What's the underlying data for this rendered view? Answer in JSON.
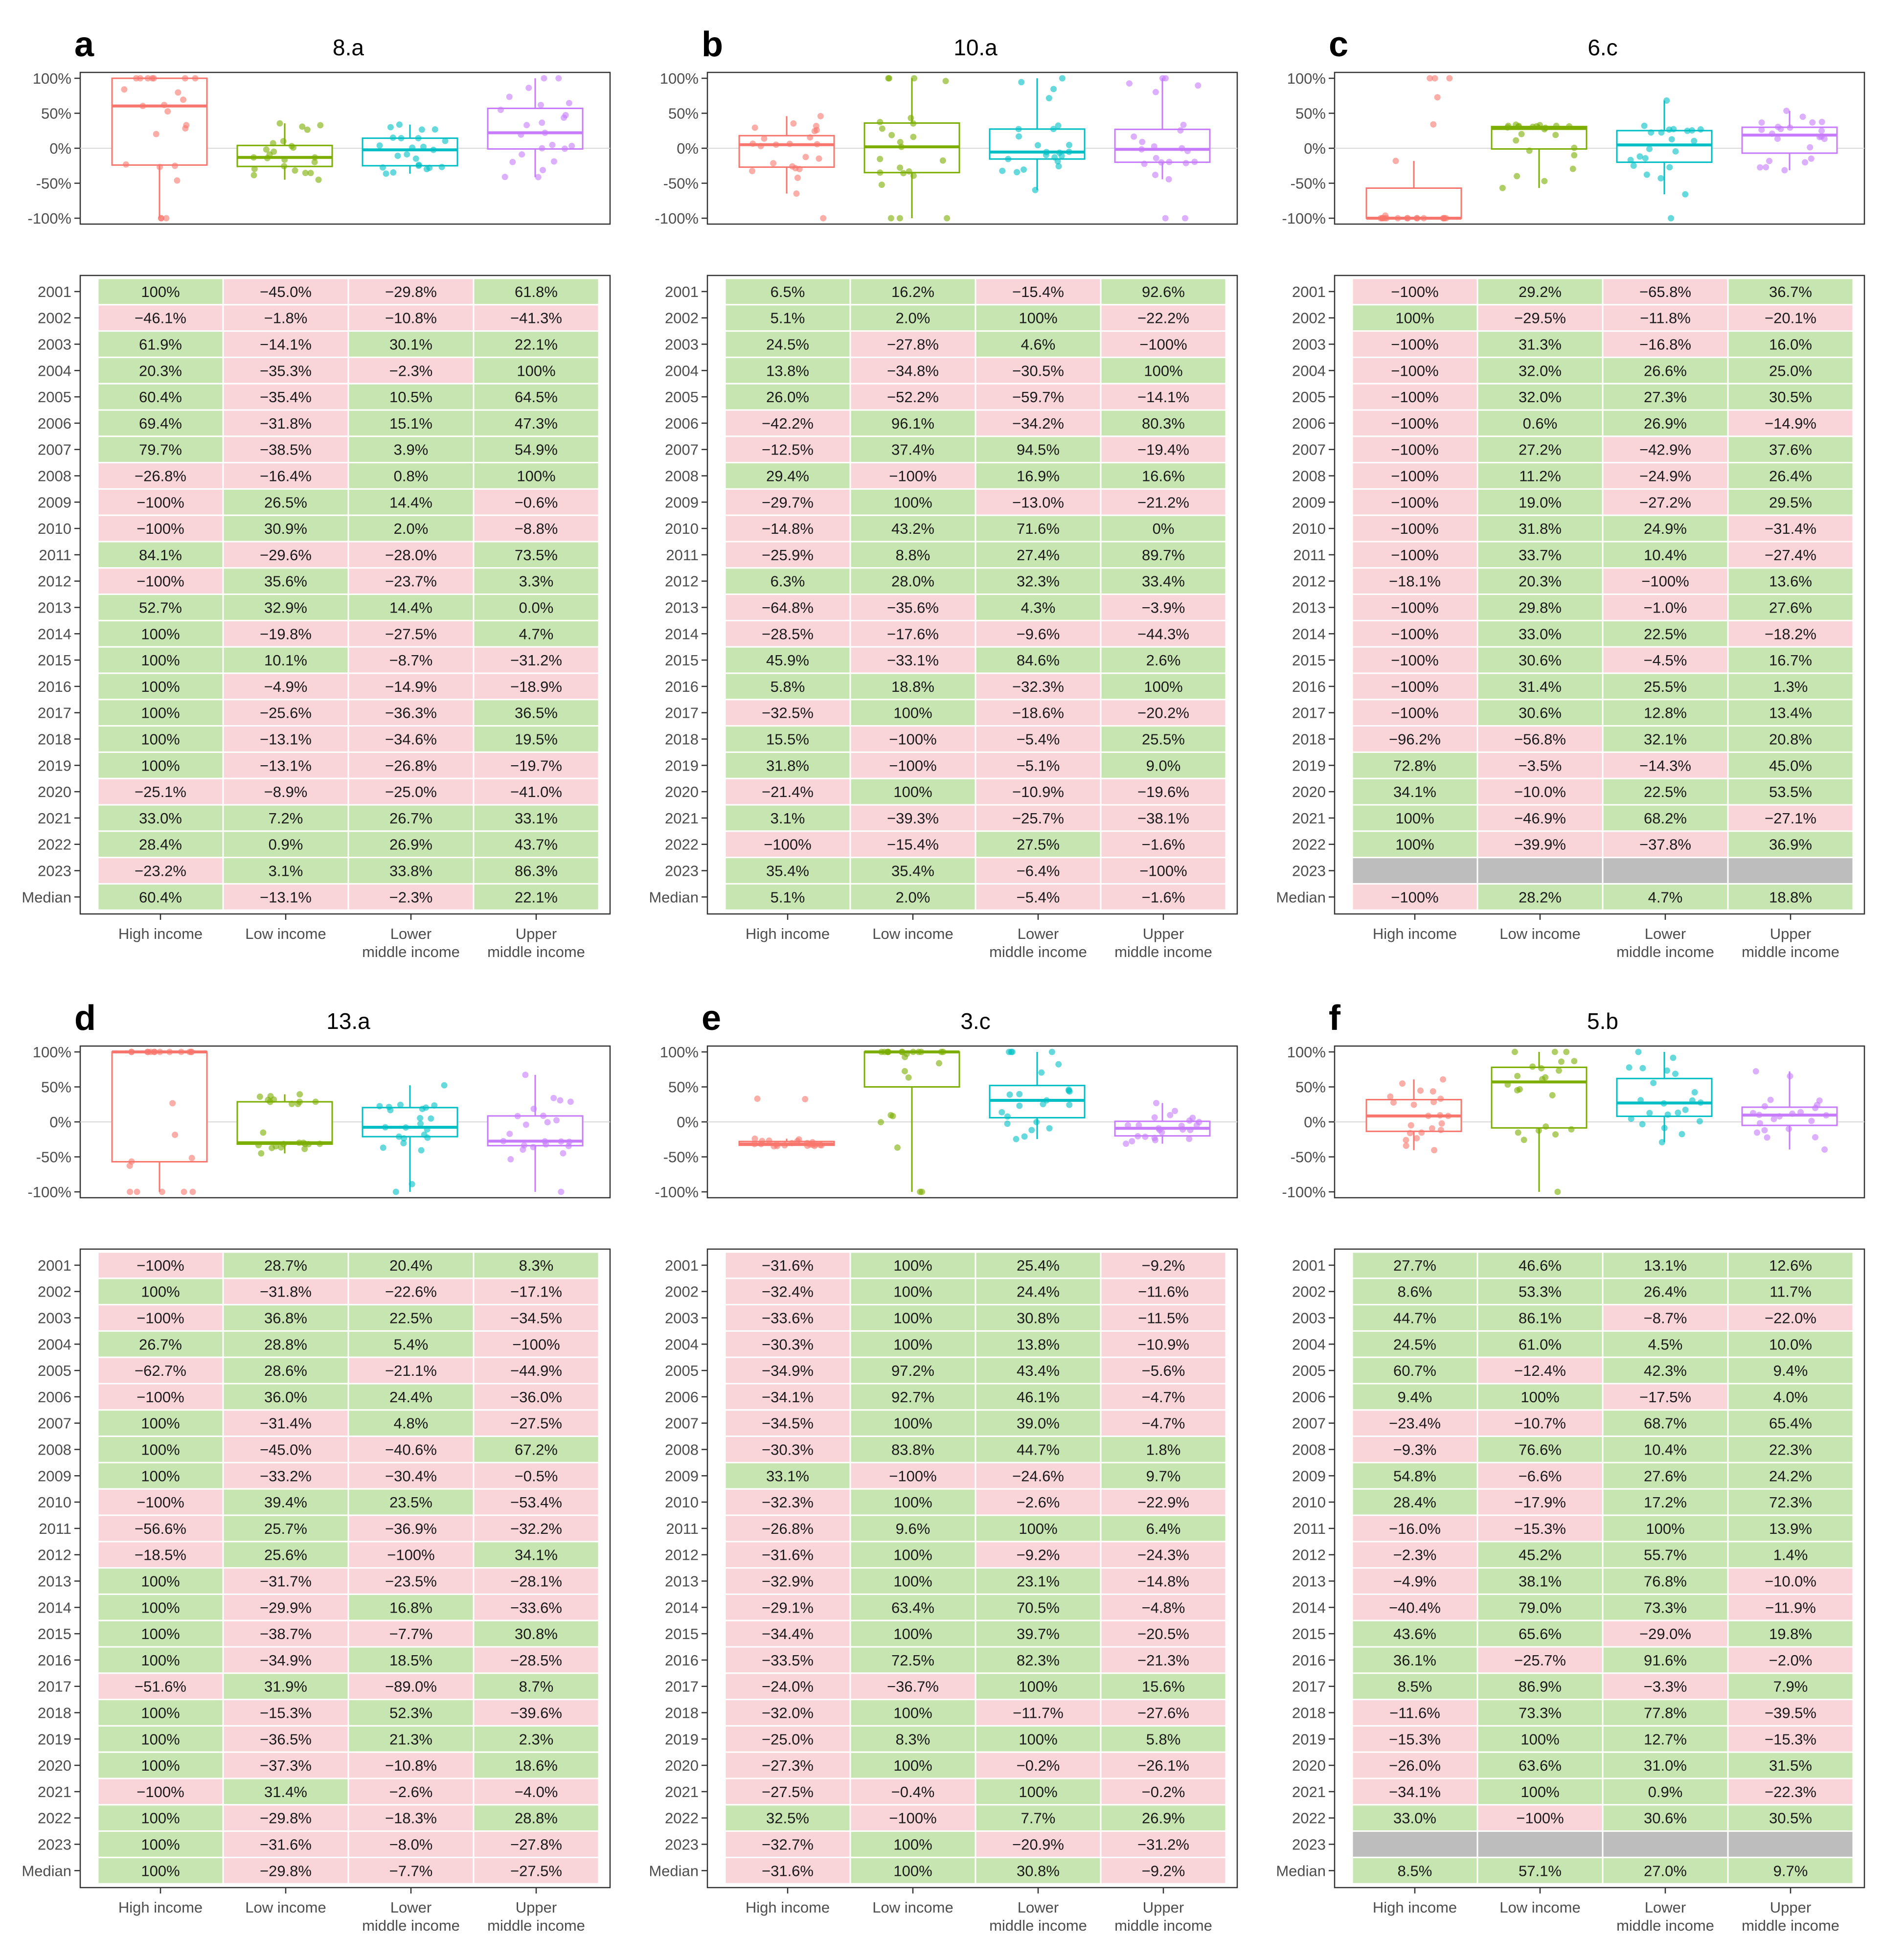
{
  "years": [
    "2001",
    "2002",
    "2003",
    "2004",
    "2005",
    "2006",
    "2007",
    "2008",
    "2009",
    "2010",
    "2011",
    "2012",
    "2013",
    "2014",
    "2015",
    "2016",
    "2017",
    "2018",
    "2019",
    "2020",
    "2021",
    "2022",
    "2023"
  ],
  "median_label": "Median",
  "groups": [
    {
      "line1": "High income",
      "line2": ""
    },
    {
      "line1": "Low income",
      "line2": ""
    },
    {
      "line1": "Lower",
      "line2": "middle income"
    },
    {
      "line1": "Upper",
      "line2": "middle income"
    }
  ],
  "y_axis": {
    "ticks": [
      100,
      50,
      0,
      -50,
      -100
    ],
    "tick_labels": [
      "100%",
      "50%",
      "0%",
      "-50%",
      "-100%"
    ]
  },
  "colors": {
    "positive": "#c7e5b0",
    "negative": "#f9d5da",
    "missing": "#bdbdbd",
    "groups": [
      "#f8766d",
      "#7cae00",
      "#00bfc4",
      "#c77cff"
    ],
    "frame": "#333333",
    "zero_line": "#d9d9d9"
  },
  "chart_data": [
    {
      "type": "boxplot+table",
      "letter": "a",
      "title": "8.a",
      "ylim": [
        -100,
        100
      ],
      "table": [
        [
          "100%",
          "−45.0%",
          "−29.8%",
          "61.8%"
        ],
        [
          "−46.1%",
          "−1.8%",
          "−10.8%",
          "−41.3%"
        ],
        [
          "61.9%",
          "−14.1%",
          "30.1%",
          "22.1%"
        ],
        [
          "20.3%",
          "−35.3%",
          "−2.3%",
          "100%"
        ],
        [
          "60.4%",
          "−35.4%",
          "10.5%",
          "64.5%"
        ],
        [
          "69.4%",
          "−31.8%",
          "15.1%",
          "47.3%"
        ],
        [
          "79.7%",
          "−38.5%",
          "3.9%",
          "54.9%"
        ],
        [
          "−26.8%",
          "−16.4%",
          "0.8%",
          "100%"
        ],
        [
          "−100%",
          "26.5%",
          "14.4%",
          "−0.6%"
        ],
        [
          "−100%",
          "30.9%",
          "2.0%",
          "−8.8%"
        ],
        [
          "84.1%",
          "−29.6%",
          "−28.0%",
          "73.5%"
        ],
        [
          "−100%",
          "35.6%",
          "−23.7%",
          "3.3%"
        ],
        [
          "52.7%",
          "32.9%",
          "14.4%",
          "0.0%"
        ],
        [
          "100%",
          "−19.8%",
          "−27.5%",
          "4.7%"
        ],
        [
          "100%",
          "10.1%",
          "−8.7%",
          "−31.2%"
        ],
        [
          "100%",
          "−4.9%",
          "−14.9%",
          "−18.9%"
        ],
        [
          "100%",
          "−25.6%",
          "−36.3%",
          "36.5%"
        ],
        [
          "100%",
          "−13.1%",
          "−34.6%",
          "19.5%"
        ],
        [
          "100%",
          "−13.1%",
          "−26.8%",
          "−19.7%"
        ],
        [
          "−25.1%",
          "−8.9%",
          "−25.0%",
          "−41.0%"
        ],
        [
          "33.0%",
          "7.2%",
          "26.7%",
          "33.1%"
        ],
        [
          "28.4%",
          "0.9%",
          "26.9%",
          "43.7%"
        ],
        [
          "−23.2%",
          "3.1%",
          "33.8%",
          "86.3%"
        ]
      ],
      "medians": [
        "60.4%",
        "−13.1%",
        "−2.3%",
        "22.1%"
      ],
      "boxes": [
        {
          "min": -100,
          "q1": -24,
          "median": 60.4,
          "q3": 100,
          "max": 100
        },
        {
          "min": -45,
          "q1": -26,
          "median": -13.1,
          "q3": 4,
          "max": 35.6
        },
        {
          "min": -36.3,
          "q1": -25,
          "median": -2.3,
          "q3": 14.4,
          "max": 33.8
        },
        {
          "min": -41.3,
          "q1": -1,
          "median": 22.1,
          "q3": 57,
          "max": 100
        }
      ]
    },
    {
      "type": "boxplot+table",
      "letter": "b",
      "title": "10.a",
      "ylim": [
        -100,
        100
      ],
      "table": [
        [
          "6.5%",
          "16.2%",
          "−15.4%",
          "92.6%"
        ],
        [
          "5.1%",
          "2.0%",
          "100%",
          "−22.2%"
        ],
        [
          "24.5%",
          "−27.8%",
          "4.6%",
          "−100%"
        ],
        [
          "13.8%",
          "−34.8%",
          "−30.5%",
          "100%"
        ],
        [
          "26.0%",
          "−52.2%",
          "−59.7%",
          "−14.1%"
        ],
        [
          "−42.2%",
          "96.1%",
          "−34.2%",
          "80.3%"
        ],
        [
          "−12.5%",
          "37.4%",
          "94.5%",
          "−19.4%"
        ],
        [
          "29.4%",
          "−100%",
          "16.9%",
          "16.6%"
        ],
        [
          "−29.7%",
          "100%",
          "−13.0%",
          "−21.2%"
        ],
        [
          "−14.8%",
          "43.2%",
          "71.6%",
          "0%"
        ],
        [
          "−25.9%",
          "8.8%",
          "27.4%",
          "89.7%"
        ],
        [
          "6.3%",
          "28.0%",
          "32.3%",
          "33.4%"
        ],
        [
          "−64.8%",
          "−35.6%",
          "4.3%",
          "−3.9%"
        ],
        [
          "−28.5%",
          "−17.6%",
          "−9.6%",
          "−44.3%"
        ],
        [
          "45.9%",
          "−33.1%",
          "84.6%",
          "2.6%"
        ],
        [
          "5.8%",
          "18.8%",
          "−32.3%",
          "100%"
        ],
        [
          "−32.5%",
          "100%",
          "−18.6%",
          "−20.2%"
        ],
        [
          "15.5%",
          "−100%",
          "−5.4%",
          "25.5%"
        ],
        [
          "31.8%",
          "−100%",
          "−5.1%",
          "9.0%"
        ],
        [
          "−21.4%",
          "100%",
          "−10.9%",
          "−19.6%"
        ],
        [
          "3.1%",
          "−39.3%",
          "−25.7%",
          "−38.1%"
        ],
        [
          "−100%",
          "−15.4%",
          "27.5%",
          "−1.6%"
        ],
        [
          "35.4%",
          "35.4%",
          "−6.4%",
          "−100%"
        ]
      ],
      "medians": [
        "5.1%",
        "2.0%",
        "−5.4%",
        "−1.6%"
      ],
      "boxes": [
        {
          "min": -64.8,
          "q1": -27,
          "median": 5.1,
          "q3": 18,
          "max": 45.9
        },
        {
          "min": -100,
          "q1": -34.8,
          "median": 2.0,
          "q3": 36,
          "max": 100
        },
        {
          "min": -59.7,
          "q1": -15.4,
          "median": -5.4,
          "q3": 27.4,
          "max": 100
        },
        {
          "min": -44.3,
          "q1": -20,
          "median": -1.6,
          "q3": 27,
          "max": 100
        }
      ]
    },
    {
      "type": "boxplot+table",
      "letter": "c",
      "title": "6.c",
      "ylim": [
        -100,
        100
      ],
      "table": [
        [
          "−100%",
          "29.2%",
          "−65.8%",
          "36.7%"
        ],
        [
          "100%",
          "−29.5%",
          "−11.8%",
          "−20.1%"
        ],
        [
          "−100%",
          "31.3%",
          "−16.8%",
          "16.0%"
        ],
        [
          "−100%",
          "32.0%",
          "26.6%",
          "25.0%"
        ],
        [
          "−100%",
          "32.0%",
          "27.3%",
          "30.5%"
        ],
        [
          "−100%",
          "0.6%",
          "26.9%",
          "−14.9%"
        ],
        [
          "−100%",
          "27.2%",
          "−42.9%",
          "37.6%"
        ],
        [
          "−100%",
          "11.2%",
          "−24.9%",
          "26.4%"
        ],
        [
          "−100%",
          "19.0%",
          "−27.2%",
          "29.5%"
        ],
        [
          "−100%",
          "31.8%",
          "24.9%",
          "−31.4%"
        ],
        [
          "−100%",
          "33.7%",
          "10.4%",
          "−27.4%"
        ],
        [
          "−18.1%",
          "20.3%",
          "−100%",
          "13.6%"
        ],
        [
          "−100%",
          "29.8%",
          "−1.0%",
          "27.6%"
        ],
        [
          "−100%",
          "33.0%",
          "22.5%",
          "−18.2%"
        ],
        [
          "−100%",
          "30.6%",
          "−4.5%",
          "16.7%"
        ],
        [
          "−100%",
          "31.4%",
          "25.5%",
          "1.3%"
        ],
        [
          "−100%",
          "30.6%",
          "12.8%",
          "13.4%"
        ],
        [
          "−96.2%",
          "−56.8%",
          "32.1%",
          "20.8%"
        ],
        [
          "72.8%",
          "−3.5%",
          "−14.3%",
          "45.0%"
        ],
        [
          "34.1%",
          "−10.0%",
          "22.5%",
          "53.5%"
        ],
        [
          "100%",
          "−46.9%",
          "68.2%",
          "−27.1%"
        ],
        [
          "100%",
          "−39.9%",
          "−37.8%",
          "36.9%"
        ],
        [
          null,
          null,
          null,
          null
        ]
      ],
      "medians": [
        "−100%",
        "28.2%",
        "4.7%",
        "18.8%"
      ],
      "boxes": [
        {
          "min": -100,
          "q1": -100,
          "median": -100,
          "q3": -57,
          "max": -18.1
        },
        {
          "min": -56.8,
          "q1": -1,
          "median": 28.2,
          "q3": 31,
          "max": 33.7
        },
        {
          "min": -65.8,
          "q1": -20,
          "median": 4.7,
          "q3": 25.2,
          "max": 68.2
        },
        {
          "min": -31.4,
          "q1": -7,
          "median": 18.8,
          "q3": 30,
          "max": 53.5
        }
      ]
    },
    {
      "type": "boxplot+table",
      "letter": "d",
      "title": "13.a",
      "ylim": [
        -100,
        100
      ],
      "table": [
        [
          "−100%",
          "28.7%",
          "20.4%",
          "8.3%"
        ],
        [
          "100%",
          "−31.8%",
          "−22.6%",
          "−17.1%"
        ],
        [
          "−100%",
          "36.8%",
          "22.5%",
          "−34.5%"
        ],
        [
          "26.7%",
          "28.8%",
          "5.4%",
          "−100%"
        ],
        [
          "−62.7%",
          "28.6%",
          "−21.1%",
          "−44.9%"
        ],
        [
          "−100%",
          "36.0%",
          "24.4%",
          "−36.0%"
        ],
        [
          "100%",
          "−31.4%",
          "4.8%",
          "−27.5%"
        ],
        [
          "100%",
          "−45.0%",
          "−40.6%",
          "67.2%"
        ],
        [
          "100%",
          "−33.2%",
          "−30.4%",
          "−0.5%"
        ],
        [
          "−100%",
          "39.4%",
          "23.5%",
          "−53.4%"
        ],
        [
          "−56.6%",
          "25.7%",
          "−36.9%",
          "−32.2%"
        ],
        [
          "−18.5%",
          "25.6%",
          "−100%",
          "34.1%"
        ],
        [
          "100%",
          "−31.7%",
          "−23.5%",
          "−28.1%"
        ],
        [
          "100%",
          "−29.9%",
          "16.8%",
          "−33.6%"
        ],
        [
          "100%",
          "−38.7%",
          "−7.7%",
          "30.8%"
        ],
        [
          "100%",
          "−34.9%",
          "18.5%",
          "−28.5%"
        ],
        [
          "−51.6%",
          "31.9%",
          "−89.0%",
          "8.7%"
        ],
        [
          "100%",
          "−15.3%",
          "52.3%",
          "−39.6%"
        ],
        [
          "100%",
          "−36.5%",
          "21.3%",
          "2.3%"
        ],
        [
          "100%",
          "−37.3%",
          "−10.8%",
          "18.6%"
        ],
        [
          "−100%",
          "31.4%",
          "−2.6%",
          "−4.0%"
        ],
        [
          "100%",
          "−29.8%",
          "−18.3%",
          "28.8%"
        ],
        [
          "100%",
          "−31.6%",
          "−8.0%",
          "−27.8%"
        ]
      ],
      "medians": [
        "100%",
        "−29.8%",
        "−7.7%",
        "−27.5%"
      ],
      "boxes": [
        {
          "min": -100,
          "q1": -57,
          "median": 100,
          "q3": 100,
          "max": 100
        },
        {
          "min": -45,
          "q1": -31.8,
          "median": -29.8,
          "q3": 28.7,
          "max": 39.4
        },
        {
          "min": -100,
          "q1": -21.1,
          "median": -7.7,
          "q3": 20.4,
          "max": 52.3
        },
        {
          "min": -100,
          "q1": -34,
          "median": -27.5,
          "q3": 8.5,
          "max": 67.2
        }
      ]
    },
    {
      "type": "boxplot+table",
      "letter": "e",
      "title": "3.c",
      "ylim": [
        -100,
        100
      ],
      "table": [
        [
          "−31.6%",
          "100%",
          "25.4%",
          "−9.2%"
        ],
        [
          "−32.4%",
          "100%",
          "24.4%",
          "−11.6%"
        ],
        [
          "−33.6%",
          "100%",
          "30.8%",
          "−11.5%"
        ],
        [
          "−30.3%",
          "100%",
          "13.8%",
          "−10.9%"
        ],
        [
          "−34.9%",
          "97.2%",
          "43.4%",
          "−5.6%"
        ],
        [
          "−34.1%",
          "92.7%",
          "46.1%",
          "−4.7%"
        ],
        [
          "−34.5%",
          "100%",
          "39.0%",
          "−4.7%"
        ],
        [
          "−30.3%",
          "83.8%",
          "44.7%",
          "1.8%"
        ],
        [
          "33.1%",
          "−100%",
          "−24.6%",
          "9.7%"
        ],
        [
          "−32.3%",
          "100%",
          "−2.6%",
          "−22.9%"
        ],
        [
          "−26.8%",
          "9.6%",
          "100%",
          "6.4%"
        ],
        [
          "−31.6%",
          "100%",
          "−9.2%",
          "−24.3%"
        ],
        [
          "−32.9%",
          "100%",
          "23.1%",
          "−14.8%"
        ],
        [
          "−29.1%",
          "63.4%",
          "70.5%",
          "−4.8%"
        ],
        [
          "−34.4%",
          "100%",
          "39.7%",
          "−20.5%"
        ],
        [
          "−33.5%",
          "72.5%",
          "82.3%",
          "−21.3%"
        ],
        [
          "−24.0%",
          "−36.7%",
          "100%",
          "15.6%"
        ],
        [
          "−32.0%",
          "100%",
          "−11.7%",
          "−27.6%"
        ],
        [
          "−25.0%",
          "8.3%",
          "100%",
          "5.8%"
        ],
        [
          "−27.3%",
          "100%",
          "−0.2%",
          "−26.1%"
        ],
        [
          "−27.5%",
          "−0.4%",
          "100%",
          "−0.2%"
        ],
        [
          "32.5%",
          "−100%",
          "7.7%",
          "26.9%"
        ],
        [
          "−32.7%",
          "100%",
          "−20.9%",
          "−31.2%"
        ]
      ],
      "medians": [
        "−31.6%",
        "100%",
        "30.8%",
        "−9.2%"
      ],
      "boxes": [
        {
          "min": -34.9,
          "q1": -33.4,
          "median": -31.6,
          "q3": -28,
          "max": -24.0
        },
        {
          "min": -100,
          "q1": 50,
          "median": 100,
          "q3": 100,
          "max": 100
        },
        {
          "min": -24.6,
          "q1": 6,
          "median": 30.8,
          "q3": 52,
          "max": 100
        },
        {
          "min": -31.2,
          "q1": -20,
          "median": -9.2,
          "q3": 0.8,
          "max": 26.9
        }
      ]
    },
    {
      "type": "boxplot+table",
      "letter": "f",
      "title": "5.b",
      "ylim": [
        -100,
        100
      ],
      "table": [
        [
          "27.7%",
          "46.6%",
          "13.1%",
          "12.6%"
        ],
        [
          "8.6%",
          "53.3%",
          "26.4%",
          "11.7%"
        ],
        [
          "44.7%",
          "86.1%",
          "−8.7%",
          "−22.0%"
        ],
        [
          "24.5%",
          "61.0%",
          "4.5%",
          "10.0%"
        ],
        [
          "60.7%",
          "−12.4%",
          "42.3%",
          "9.4%"
        ],
        [
          "9.4%",
          "100%",
          "−17.5%",
          "4.0%"
        ],
        [
          "−23.4%",
          "−10.7%",
          "68.7%",
          "65.4%"
        ],
        [
          "−9.3%",
          "76.6%",
          "10.4%",
          "22.3%"
        ],
        [
          "54.8%",
          "−6.6%",
          "27.6%",
          "24.2%"
        ],
        [
          "28.4%",
          "−17.9%",
          "17.2%",
          "72.3%"
        ],
        [
          "−16.0%",
          "−15.3%",
          "100%",
          "13.9%"
        ],
        [
          "−2.3%",
          "45.2%",
          "55.7%",
          "1.4%"
        ],
        [
          "−4.9%",
          "38.1%",
          "76.8%",
          "−10.0%"
        ],
        [
          "−40.4%",
          "79.0%",
          "73.3%",
          "−11.9%"
        ],
        [
          "43.6%",
          "65.6%",
          "−29.0%",
          "19.8%"
        ],
        [
          "36.1%",
          "−25.7%",
          "91.6%",
          "−2.0%"
        ],
        [
          "8.5%",
          "86.9%",
          "−3.3%",
          "7.9%"
        ],
        [
          "−11.6%",
          "73.3%",
          "77.8%",
          "−39.5%"
        ],
        [
          "−15.3%",
          "100%",
          "12.7%",
          "−15.3%"
        ],
        [
          "−26.0%",
          "63.6%",
          "31.0%",
          "31.5%"
        ],
        [
          "−34.1%",
          "100%",
          "0.9%",
          "−22.3%"
        ],
        [
          "33.0%",
          "−100%",
          "30.6%",
          "30.5%"
        ],
        [
          null,
          null,
          null,
          null
        ]
      ],
      "medians": [
        "8.5%",
        "57.1%",
        "27.0%",
        "9.7%"
      ],
      "boxes": [
        {
          "min": -40.4,
          "q1": -13.5,
          "median": 8.5,
          "q3": 31.8,
          "max": 60.7
        },
        {
          "min": -100,
          "q1": -8.6,
          "median": 57.1,
          "q3": 78,
          "max": 100
        },
        {
          "min": -29.0,
          "q1": 8,
          "median": 27.0,
          "q3": 62,
          "max": 100
        },
        {
          "min": -39.5,
          "q1": -5,
          "median": 9.7,
          "q3": 21,
          "max": 72.3
        }
      ]
    }
  ]
}
